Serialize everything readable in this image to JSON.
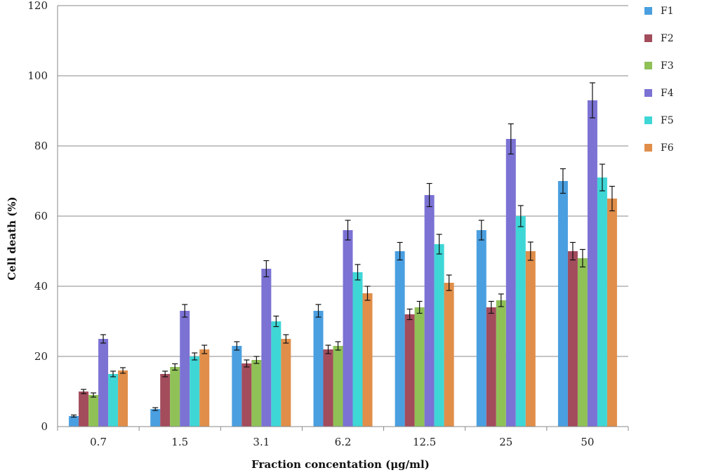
{
  "chart_data": {
    "type": "bar",
    "title": "",
    "xlabel": "Fraction concentation (μg/ml)",
    "ylabel": "Cell death (%)",
    "ylim": [
      0,
      120
    ],
    "yticks": [
      0,
      20,
      40,
      60,
      80,
      100,
      120
    ],
    "grid": true,
    "legend_position": "right",
    "categories": [
      "0.7",
      "1.5",
      "3.1",
      "6.2",
      "12.5",
      "25",
      "50"
    ],
    "series": [
      {
        "name": "F1",
        "color": "#4a9fe0",
        "values": [
          3,
          5,
          23,
          33,
          50,
          56,
          70
        ],
        "errors": [
          0.3,
          0.4,
          1.2,
          1.8,
          2.5,
          2.8,
          3.5
        ]
      },
      {
        "name": "F2",
        "color": "#a34c5c",
        "values": [
          10,
          15,
          18,
          22,
          32,
          34,
          50
        ],
        "errors": [
          0.6,
          0.8,
          1.0,
          1.2,
          1.5,
          1.7,
          2.5
        ]
      },
      {
        "name": "F3",
        "color": "#8fc157",
        "values": [
          9,
          17,
          19,
          23,
          34,
          36,
          48
        ],
        "errors": [
          0.6,
          0.9,
          1.0,
          1.2,
          1.7,
          1.8,
          2.5
        ]
      },
      {
        "name": "F4",
        "color": "#7b72d4",
        "values": [
          25,
          33,
          45,
          56,
          66,
          82,
          93
        ],
        "errors": [
          1.2,
          1.8,
          2.3,
          2.8,
          3.3,
          4.3,
          5.0
        ]
      },
      {
        "name": "F5",
        "color": "#3fd6d6",
        "values": [
          15,
          20,
          30,
          44,
          52,
          60,
          71
        ],
        "errors": [
          0.8,
          1.0,
          1.5,
          2.2,
          2.8,
          3.0,
          3.8
        ]
      },
      {
        "name": "F6",
        "color": "#e08e4a",
        "values": [
          16,
          22,
          25,
          38,
          41,
          50,
          65
        ],
        "errors": [
          0.8,
          1.2,
          1.2,
          2.0,
          2.2,
          2.6,
          3.5
        ]
      }
    ]
  }
}
